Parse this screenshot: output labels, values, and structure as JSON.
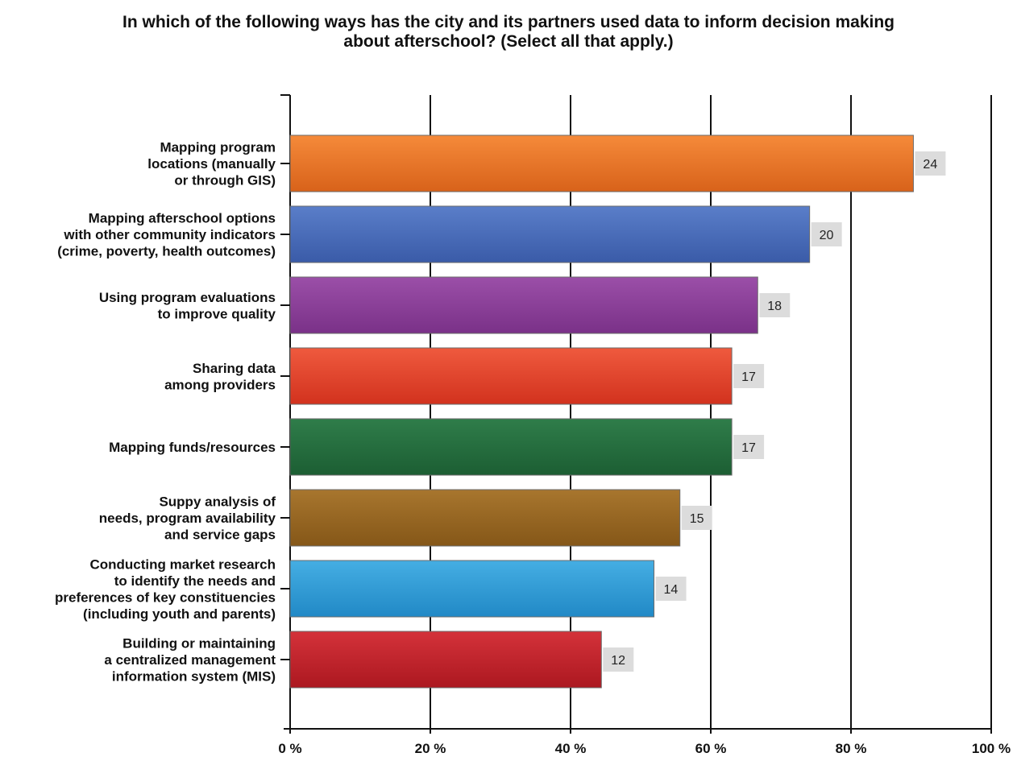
{
  "chart_data": {
    "type": "bar",
    "orientation": "horizontal",
    "title": "In which of the following ways has the city and its partners used data to inform decision making about afterschool? (Select all that apply.)",
    "title_lines": [
      "In which of the following ways has the city and its partners used data to inform decision making",
      "about afterschool? (Select all that apply.)"
    ],
    "categories": [
      [
        "Mapping program",
        "locations (manually",
        "or through GIS)"
      ],
      [
        "Mapping afterschool options",
        "with other community indicators",
        "(crime, poverty, health outcomes)"
      ],
      [
        "Using program evaluations",
        "to improve quality"
      ],
      [
        "Sharing data",
        "among providers"
      ],
      [
        "Mapping funds/resources"
      ],
      [
        "Suppy analysis of",
        "needs, program availability",
        "and service gaps"
      ],
      [
        "Conducting market research",
        "to identify the needs and",
        "preferences of key constituencies",
        "(including youth and parents)"
      ],
      [
        "Building or maintaining",
        "a centralized management",
        "information system (MIS)"
      ]
    ],
    "percent_values": [
      88.9,
      74.1,
      66.7,
      63.0,
      63.0,
      55.6,
      51.9,
      44.4
    ],
    "count_labels": [
      "24",
      "20",
      "18",
      "17",
      "17",
      "15",
      "14",
      "12"
    ],
    "bar_colors": [
      [
        "#f58a3a",
        "#d8621a"
      ],
      [
        "#5a7ec9",
        "#3a5ba8"
      ],
      [
        "#9b4fa8",
        "#7a3188"
      ],
      [
        "#ef5a3e",
        "#d2321e"
      ],
      [
        "#2f7d4a",
        "#1c5e33"
      ],
      [
        "#a8762e",
        "#855718"
      ],
      [
        "#45aee3",
        "#2189c6"
      ],
      [
        "#d4323a",
        "#ac1820"
      ]
    ],
    "xlim": [
      0,
      100
    ],
    "x_ticks": [
      0,
      20,
      40,
      60,
      80,
      100
    ],
    "x_tick_labels": [
      "0 %",
      "20 %",
      "40 %",
      "60 %",
      "80 %",
      "100 %"
    ],
    "grid": "vertical gridlines at each tick",
    "legend": "none"
  }
}
